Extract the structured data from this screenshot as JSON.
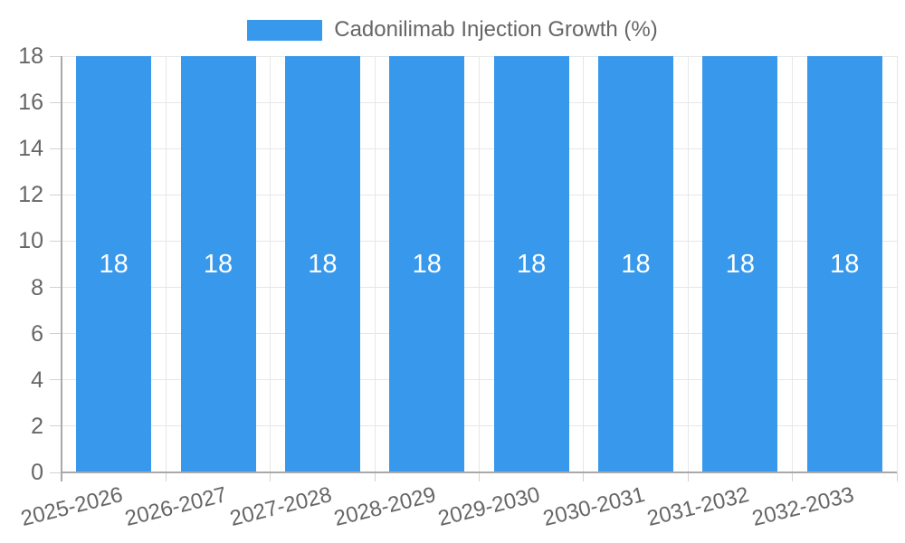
{
  "legend": {
    "items": [
      {
        "label": "Cadonilimab Injection Growth (%)",
        "color": "#3899EC"
      }
    ]
  },
  "chart_data": {
    "type": "bar",
    "title": "Cadonilimab Injection Growth (%)",
    "categories": [
      "2025-2026",
      "2026-2027",
      "2027-2028",
      "2028-2029",
      "2029-2030",
      "2030-2031",
      "2031-2032",
      "2032-2033"
    ],
    "values": [
      18,
      18,
      18,
      18,
      18,
      18,
      18,
      18
    ],
    "bar_value_labels": [
      "18",
      "18",
      "18",
      "18",
      "18",
      "18",
      "18",
      "18"
    ],
    "xlabel": "",
    "ylabel": "",
    "ylim": [
      0,
      18
    ],
    "ytick_step": 2,
    "ytick_labels": [
      "0",
      "2",
      "4",
      "6",
      "8",
      "10",
      "12",
      "14",
      "16",
      "18"
    ],
    "grid": true,
    "legend_position": "top",
    "colors": {
      "bar": "#3899EC",
      "bar_label_text": "#FFFFFF",
      "grid_line": "#E7E7E7",
      "tick_mark": "#D2D2D2",
      "axis_line": "#A9A9A9",
      "tick_label_text": "#666666",
      "legend_text": "#666666"
    }
  }
}
